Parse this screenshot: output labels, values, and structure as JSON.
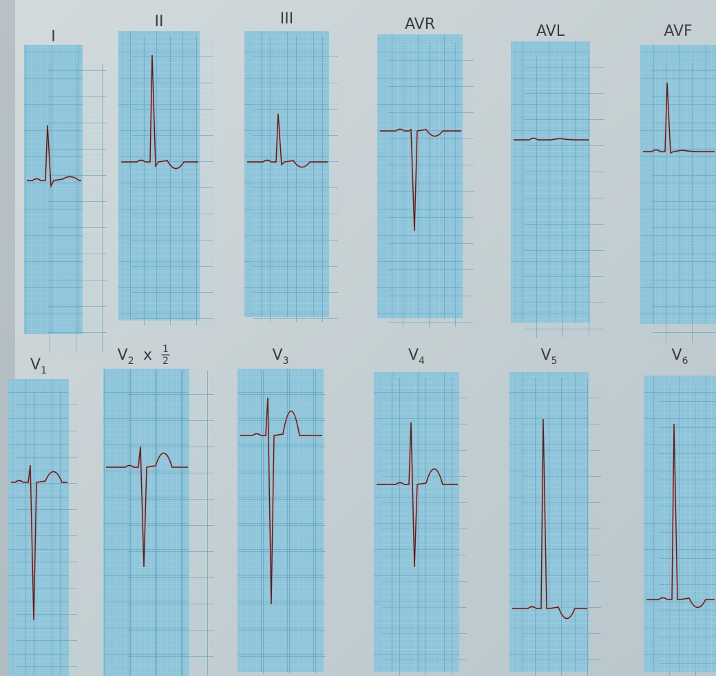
{
  "leads": [
    {
      "label": "I"
    },
    {
      "label": "II"
    },
    {
      "label": "III"
    },
    {
      "label": "AVR"
    },
    {
      "label": "AVL"
    },
    {
      "label": "AVF"
    },
    {
      "label": "V",
      "subscript": "1"
    },
    {
      "label": "V",
      "subscript": "2",
      "multiplier": {
        "sign": "x",
        "numerator": "1",
        "denominator": "2"
      }
    },
    {
      "label": "V",
      "subscript": "3"
    },
    {
      "label": "V",
      "subscript": "4"
    },
    {
      "label": "V",
      "subscript": "5"
    },
    {
      "label": "V",
      "subscript": "6"
    }
  ]
}
